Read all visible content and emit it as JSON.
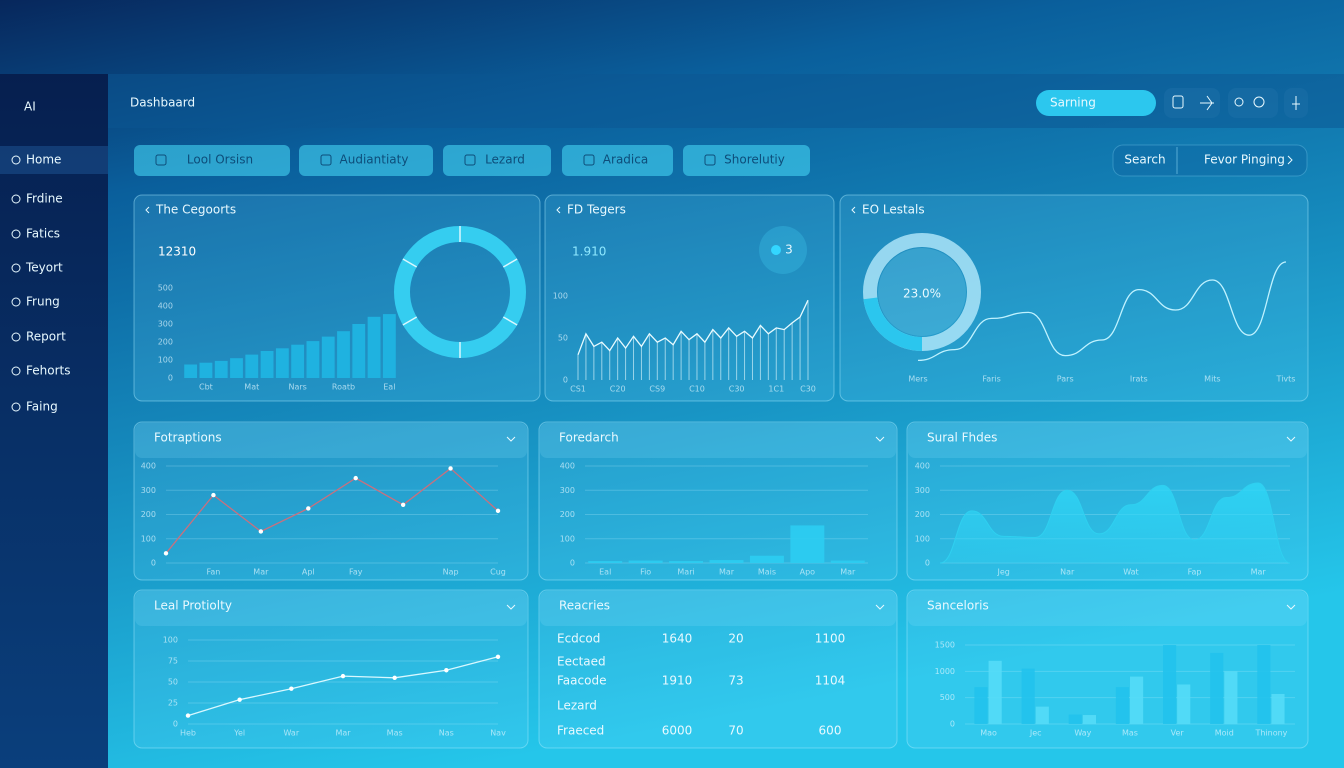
{
  "sidebar": {
    "logo": "AI",
    "items": [
      "Home",
      "Frdine",
      "Fatics",
      "Teyort",
      "Frung",
      "Report",
      "Fehorts",
      "Faing"
    ]
  },
  "header": {
    "title": "Dashbaard",
    "search": "Sarning"
  },
  "toolbar": {
    "buttons": [
      "Lool Orsisn",
      "Audiantiaty",
      "Lezard",
      "Aradica",
      "Shorelutiy"
    ],
    "search": "Search",
    "action": "Fevor Pinging"
  },
  "panels": [
    {
      "title": "The Cegoorts",
      "kpi": 12310,
      "chart": {
        "type": "bar",
        "color": "#1fb6e3",
        "categories": [
          null,
          "Cbt",
          null,
          null,
          "Mat",
          null,
          null,
          "Nars",
          null,
          null,
          "Roatb",
          null,
          null,
          "Eal"
        ],
        "values": [
          75,
          85,
          95,
          110,
          130,
          150,
          165,
          185,
          205,
          230,
          260,
          300,
          340,
          355
        ],
        "ylim": [
          0,
          500
        ],
        "yticks": [
          0,
          100,
          200,
          300,
          400,
          500
        ],
        "grid": false
      }
    },
    {
      "title": "FD Tegers",
      "kpi": "1.910",
      "badge": 3,
      "chart": {
        "type": "line",
        "color": "#e8fbff",
        "categories": [
          "CS1",
          null,
          null,
          null,
          null,
          "C20",
          null,
          null,
          null,
          null,
          "CS9",
          null,
          null,
          null,
          null,
          "C10",
          null,
          null,
          null,
          null,
          "C30",
          null,
          null,
          null,
          null,
          "1C1",
          null,
          null,
          null,
          "C30"
        ],
        "values": [
          30,
          55,
          40,
          45,
          35,
          50,
          38,
          52,
          40,
          55,
          45,
          50,
          42,
          58,
          48,
          55,
          45,
          60,
          50,
          62,
          52,
          58,
          50,
          65,
          55,
          62,
          60,
          68,
          75,
          95
        ],
        "ylim": [
          0,
          100
        ],
        "yticks": [
          0,
          50,
          100
        ],
        "grid": false,
        "drops": true
      }
    },
    {
      "title": "EO Lestals",
      "gauge": {
        "value": 23,
        "value_label": "23.0%"
      },
      "chart": {
        "type": "line",
        "color": "#bff2ff",
        "categories": [
          "Mers",
          null,
          "Faris",
          null,
          "Pars",
          null,
          "Irats",
          null,
          "Mits",
          null,
          "Tivts"
        ],
        "values": [
          8,
          17,
          43,
          48,
          12,
          25,
          67,
          50,
          75,
          29,
          90
        ],
        "ylim": [
          0,
          100
        ],
        "grid": false,
        "smooth": true
      }
    },
    {
      "title": "Fotraptions",
      "chart": {
        "type": "line",
        "color": "#c9707e",
        "markers": true,
        "categories": [
          null,
          "Fan",
          "Mar",
          "Apl",
          "Fay",
          null,
          "Nap",
          "Cug"
        ],
        "values": [
          40,
          280,
          130,
          225,
          350,
          240,
          390,
          215
        ],
        "ylim": [
          0,
          400
        ],
        "yticks": [
          0,
          100,
          200,
          300,
          400
        ],
        "grid": true
      }
    },
    {
      "title": "Foredarch",
      "chart": {
        "type": "bar",
        "color": "#2ccdf2",
        "categories": [
          "Eal",
          "Fio",
          "Mari",
          "Mar",
          "Mais",
          "Apo",
          "Mar"
        ],
        "values": [
          8,
          10,
          8,
          12,
          30,
          155,
          10
        ],
        "ylim": [
          0,
          400
        ],
        "yticks": [
          0,
          100,
          200,
          300,
          400
        ],
        "grid": true
      }
    },
    {
      "title": "Sural Fhdes",
      "chart": {
        "type": "area",
        "color": "#2fd0f0",
        "categories": [
          null,
          null,
          "Jeg",
          null,
          "Nar",
          null,
          "Wat",
          null,
          "Fap",
          null,
          "Mar",
          null
        ],
        "values": [
          0,
          215,
          110,
          105,
          300,
          120,
          240,
          320,
          95,
          270,
          330,
          0
        ],
        "ylim": [
          0,
          400
        ],
        "yticks": [
          0,
          100,
          200,
          300,
          400
        ],
        "grid": true,
        "smooth": true
      }
    },
    {
      "title": "Leal Protiolty",
      "chart": {
        "type": "line",
        "color": "#d8f8ff",
        "markers": true,
        "categories": [
          "Heb",
          "Yel",
          "War",
          "Mar",
          "Mas",
          "Nas",
          "Nav"
        ],
        "values": [
          10,
          29,
          42,
          57,
          55,
          64,
          80
        ],
        "ylim": [
          0,
          100
        ],
        "yticks": [
          0,
          25,
          50,
          75,
          100
        ],
        "grid": true
      }
    },
    {
      "title": "Reacries",
      "table": {
        "rows": [
          [
            "Ecdcod",
            1640,
            20,
            1100
          ],
          [
            "Eectaed"
          ],
          [
            "Faacode",
            1910,
            73,
            1104
          ],
          [
            "Lezard"
          ],
          [
            "Fraeced",
            6000,
            70,
            600
          ]
        ]
      }
    },
    {
      "title": "Sanceloris",
      "chart": {
        "type": "bar",
        "categories": [
          "Mao",
          "Jec",
          "Way",
          "Mas",
          "Ver",
          "Moid",
          "Thinony"
        ],
        "series": [
          {
            "color": "#22c2ec",
            "values": [
              700,
              1050,
              180,
              700,
              1500,
              1350,
              1500
            ]
          },
          {
            "color": "#55dcf7",
            "values": [
              1200,
              330,
              170,
              900,
              750,
              1000,
              570
            ]
          }
        ],
        "ylim": [
          0,
          1500
        ],
        "yticks": [
          0,
          500,
          1000,
          1500
        ],
        "grid": true
      }
    }
  ]
}
